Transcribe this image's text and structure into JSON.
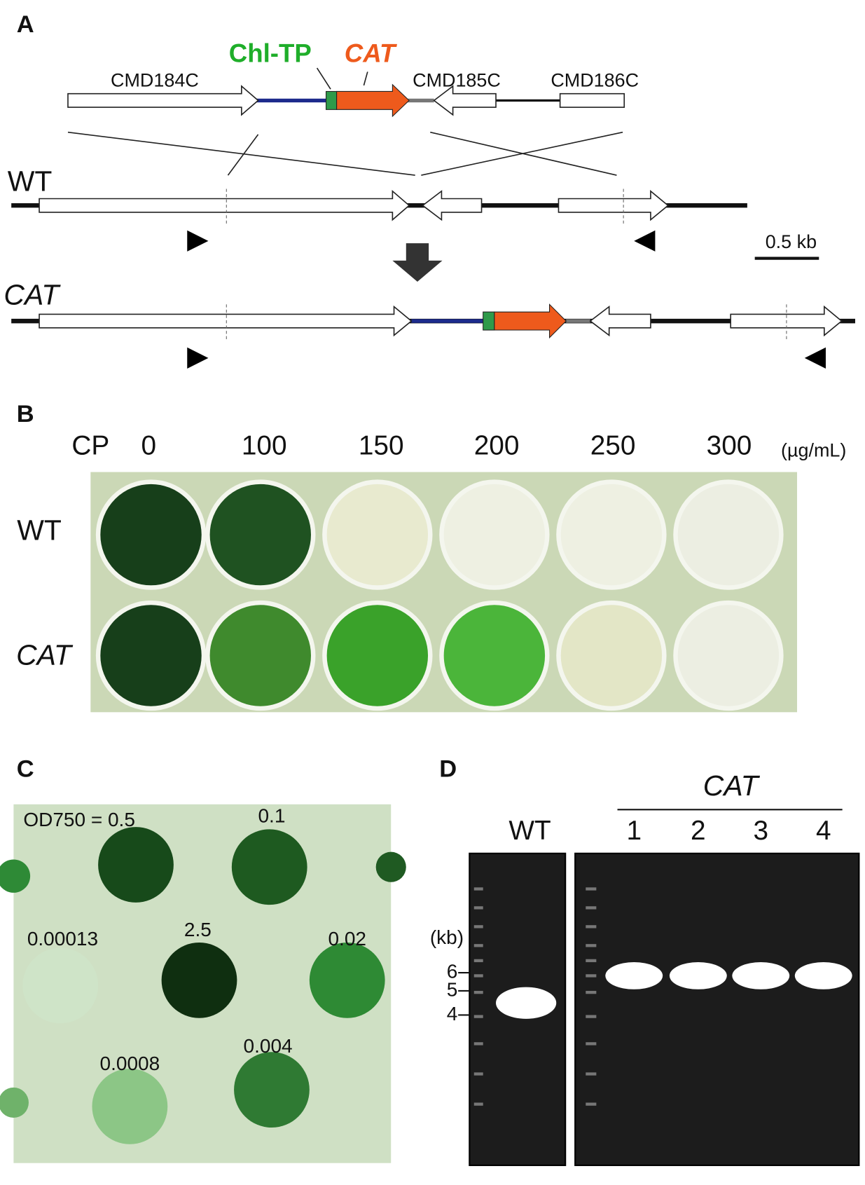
{
  "panels": {
    "a": {
      "label": "A",
      "construct_genes": [
        "CMD184C",
        "CMD185C",
        "CMD186C"
      ],
      "chl_tp": "Chl-TP",
      "cat": "CAT",
      "wt": "WT",
      "cat_strain": "CAT",
      "scale": "0.5 kb"
    },
    "b": {
      "label": "B",
      "cp": "CP",
      "concentrations": [
        "0",
        "100",
        "150",
        "200",
        "250",
        "300"
      ],
      "unit": "(µg/mL)",
      "rows": [
        "WT",
        "CAT"
      ]
    },
    "c": {
      "label": "C",
      "spots": [
        "OD750 = 0.5",
        "0.1",
        "0.00013",
        "2.5",
        "0.02",
        "0.0008",
        "0.004"
      ]
    },
    "d": {
      "label": "D",
      "group": "CAT",
      "lanes": [
        "WT",
        "1",
        "2",
        "3",
        "4"
      ],
      "unit": "(kb)",
      "markers": [
        "6",
        "5",
        "4"
      ]
    }
  }
}
